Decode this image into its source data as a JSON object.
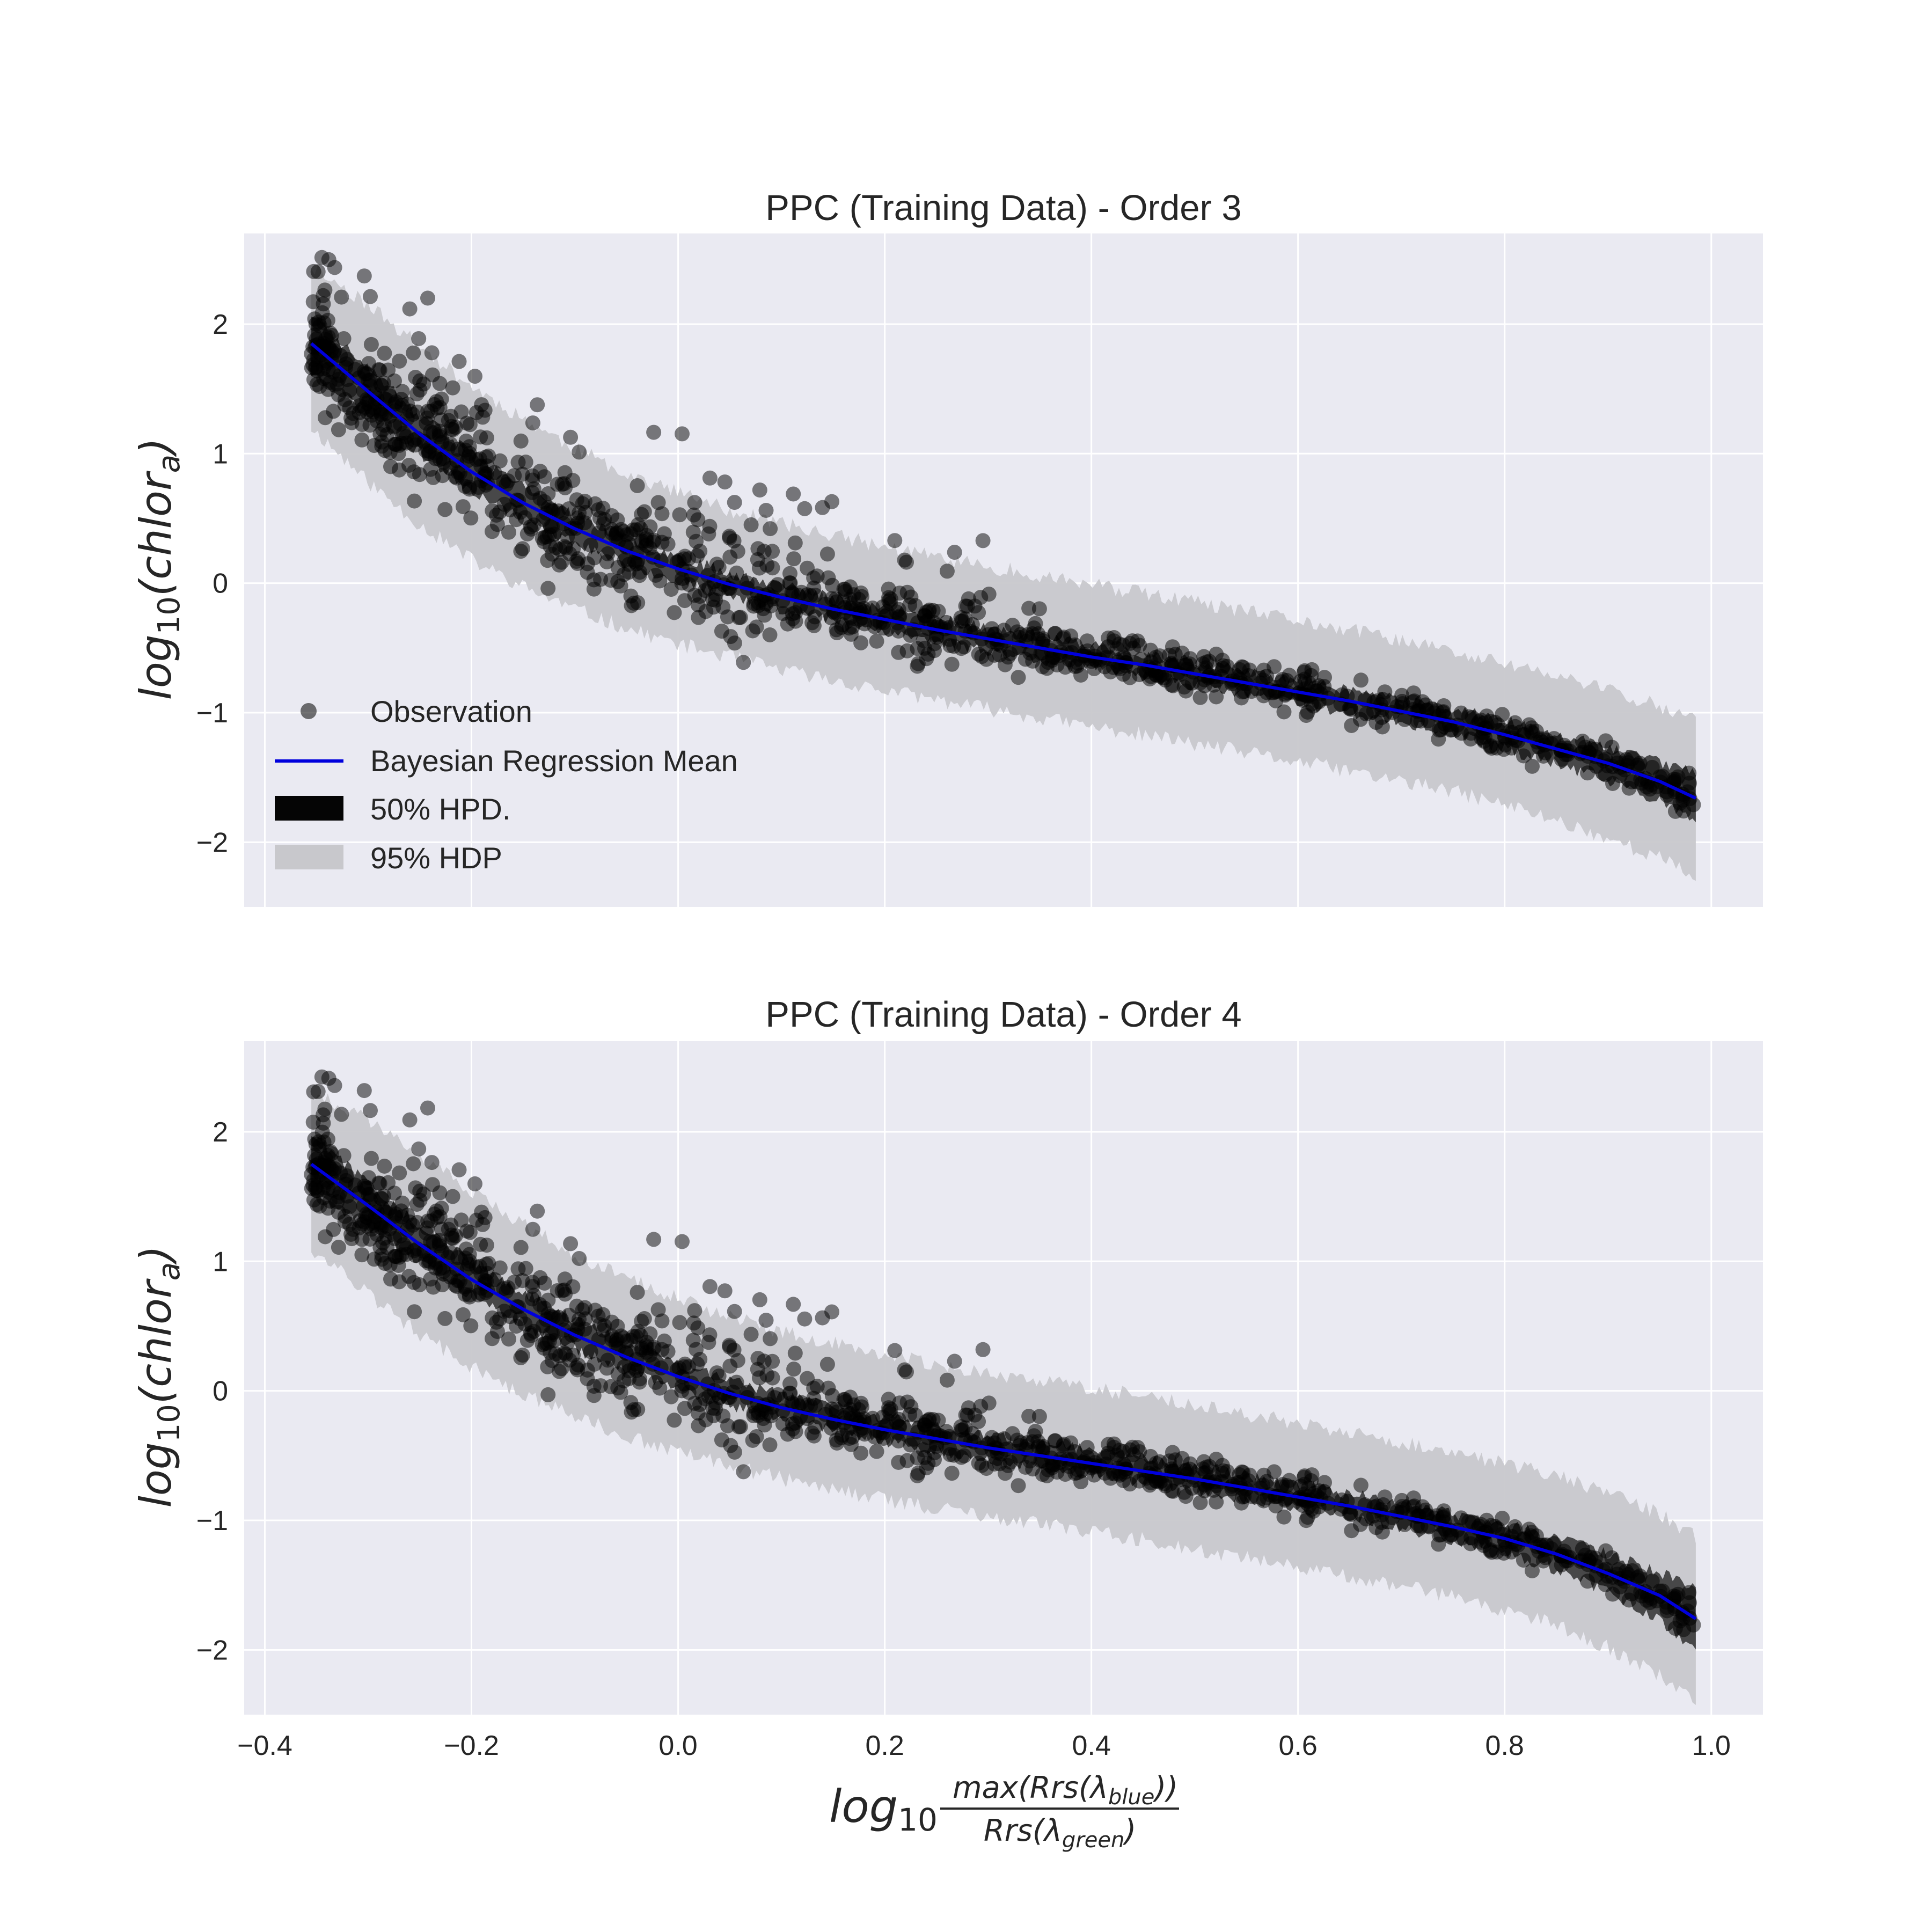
{
  "figure": {
    "xlabel": {
      "prefix": "log",
      "sub": "10",
      "num": "max(Rrs(λ",
      "num_sub": "blue",
      "num_end": "))",
      "den": "Rrs(λ",
      "den_sub": "green",
      "den_end": ")"
    },
    "ylabel": {
      "prefix": "log",
      "sub": "10",
      "main": "(chlor",
      "main_sub": "a",
      "end": ")"
    }
  },
  "legend": {
    "observation": "Observation",
    "mean": "Bayesian Regression Mean",
    "hpd50": "50% HPD.",
    "hdp95": "95% HDP"
  },
  "colors": {
    "panel_bg": "#EAEAF2",
    "mean_line": "#0000DD",
    "obs": "#000000",
    "hpd50": "#3A3A3A",
    "hdp95": "#C8C8CC",
    "grid": "#FFFFFF"
  },
  "chart_data": [
    {
      "type": "scatter",
      "title": "PPC (Training Data) - Order 3",
      "xlim": [
        -0.42,
        1.05
      ],
      "ylim": [
        -2.5,
        2.7
      ],
      "xticks": [
        -0.4,
        -0.2,
        0.0,
        0.2,
        0.4,
        0.6,
        0.8,
        1.0
      ],
      "xtick_labels": [
        "−0.4",
        "−0.2",
        "0.0",
        "0.2",
        "0.4",
        "0.6",
        "0.8",
        "1.0"
      ],
      "yticks": [
        -2,
        -1,
        0,
        1,
        2
      ],
      "ytick_labels": [
        "−2",
        "−1",
        "0",
        "1",
        "2"
      ],
      "xtick_labels_visible": false,
      "grid": true,
      "legend_position": "lower-left",
      "series": [
        {
          "name": "Bayesian Regression Mean",
          "kind": "line",
          "x": [
            -0.355,
            -0.3,
            -0.25,
            -0.2,
            -0.15,
            -0.1,
            -0.05,
            0.0,
            0.05,
            0.1,
            0.15,
            0.2,
            0.25,
            0.3,
            0.35,
            0.4,
            0.45,
            0.5,
            0.55,
            0.6,
            0.65,
            0.7,
            0.75,
            0.8,
            0.85,
            0.9,
            0.95,
            0.985
          ],
          "y": [
            1.85,
            1.48,
            1.15,
            0.86,
            0.62,
            0.42,
            0.25,
            0.11,
            -0.01,
            -0.11,
            -0.2,
            -0.28,
            -0.36,
            -0.43,
            -0.5,
            -0.57,
            -0.63,
            -0.7,
            -0.77,
            -0.84,
            -0.91,
            -0.99,
            -1.07,
            -1.17,
            -1.28,
            -1.39,
            -1.53,
            -1.66
          ]
        },
        {
          "name": "50% HPD.",
          "kind": "band",
          "x": [
            -0.355,
            -0.3,
            -0.25,
            -0.2,
            -0.15,
            -0.1,
            -0.05,
            0.0,
            0.05,
            0.1,
            0.15,
            0.2,
            0.25,
            0.3,
            0.35,
            0.4,
            0.45,
            0.5,
            0.55,
            0.6,
            0.65,
            0.7,
            0.75,
            0.8,
            0.85,
            0.9,
            0.95,
            0.985
          ],
          "lower": [
            1.62,
            1.31,
            1.0,
            0.72,
            0.5,
            0.31,
            0.15,
            0.01,
            -0.1,
            -0.2,
            -0.29,
            -0.37,
            -0.45,
            -0.52,
            -0.59,
            -0.66,
            -0.72,
            -0.79,
            -0.86,
            -0.93,
            -1.0,
            -1.08,
            -1.17,
            -1.28,
            -1.4,
            -1.52,
            -1.68,
            -1.86
          ],
          "upper": [
            2.07,
            1.66,
            1.3,
            1.0,
            0.74,
            0.53,
            0.35,
            0.21,
            0.08,
            -0.02,
            -0.11,
            -0.19,
            -0.27,
            -0.34,
            -0.41,
            -0.48,
            -0.54,
            -0.61,
            -0.68,
            -0.75,
            -0.82,
            -0.9,
            -0.97,
            -1.06,
            -1.16,
            -1.26,
            -1.38,
            -1.46
          ]
        },
        {
          "name": "95% HDP",
          "kind": "band",
          "x": [
            -0.355,
            -0.3,
            -0.25,
            -0.2,
            -0.15,
            -0.1,
            -0.05,
            0.0,
            0.05,
            0.1,
            0.15,
            0.2,
            0.25,
            0.3,
            0.35,
            0.4,
            0.45,
            0.5,
            0.55,
            0.6,
            0.65,
            0.7,
            0.75,
            0.8,
            0.85,
            0.9,
            0.95,
            0.985
          ],
          "lower": [
            1.2,
            0.78,
            0.45,
            0.18,
            -0.03,
            -0.2,
            -0.35,
            -0.47,
            -0.57,
            -0.67,
            -0.75,
            -0.83,
            -0.9,
            -0.97,
            -1.04,
            -1.11,
            -1.17,
            -1.24,
            -1.31,
            -1.38,
            -1.45,
            -1.53,
            -1.61,
            -1.71,
            -1.83,
            -1.97,
            -2.12,
            -2.28
          ],
          "upper": [
            2.45,
            2.15,
            1.83,
            1.52,
            1.27,
            1.04,
            0.85,
            0.7,
            0.56,
            0.46,
            0.37,
            0.28,
            0.2,
            0.13,
            0.06,
            -0.01,
            -0.08,
            -0.15,
            -0.22,
            -0.29,
            -0.36,
            -0.44,
            -0.53,
            -0.62,
            -0.72,
            -0.82,
            -0.95,
            -1.07
          ]
        },
        {
          "name": "Observation",
          "kind": "scatter",
          "n_points": 1100
        }
      ]
    },
    {
      "type": "scatter",
      "title": "PPC (Training Data) - Order 4",
      "xlim": [
        -0.42,
        1.05
      ],
      "ylim": [
        -2.5,
        2.7
      ],
      "xticks": [
        -0.4,
        -0.2,
        0.0,
        0.2,
        0.4,
        0.6,
        0.8,
        1.0
      ],
      "xtick_labels": [
        "−0.4",
        "−0.2",
        "0.0",
        "0.2",
        "0.4",
        "0.6",
        "0.8",
        "1.0"
      ],
      "yticks": [
        -2,
        -1,
        0,
        1,
        2
      ],
      "ytick_labels": [
        "−2",
        "−1",
        "0",
        "1",
        "2"
      ],
      "xtick_labels_visible": true,
      "grid": true,
      "series": [
        {
          "name": "Bayesian Regression Mean",
          "kind": "line",
          "x": [
            -0.355,
            -0.3,
            -0.25,
            -0.2,
            -0.15,
            -0.1,
            -0.05,
            0.0,
            0.05,
            0.1,
            0.15,
            0.2,
            0.25,
            0.3,
            0.35,
            0.4,
            0.45,
            0.5,
            0.55,
            0.6,
            0.65,
            0.7,
            0.75,
            0.8,
            0.85,
            0.9,
            0.95,
            0.985
          ],
          "y": [
            1.75,
            1.43,
            1.13,
            0.86,
            0.63,
            0.43,
            0.26,
            0.11,
            -0.02,
            -0.13,
            -0.22,
            -0.3,
            -0.37,
            -0.44,
            -0.5,
            -0.56,
            -0.62,
            -0.68,
            -0.75,
            -0.82,
            -0.89,
            -0.97,
            -1.05,
            -1.14,
            -1.26,
            -1.41,
            -1.58,
            -1.76
          ]
        },
        {
          "name": "50% HPD.",
          "kind": "band",
          "x": [
            -0.355,
            -0.3,
            -0.25,
            -0.2,
            -0.15,
            -0.1,
            -0.05,
            0.0,
            0.05,
            0.1,
            0.15,
            0.2,
            0.25,
            0.3,
            0.35,
            0.4,
            0.45,
            0.5,
            0.55,
            0.6,
            0.65,
            0.7,
            0.75,
            0.8,
            0.85,
            0.9,
            0.95,
            0.985
          ],
          "lower": [
            1.53,
            1.27,
            0.99,
            0.73,
            0.51,
            0.32,
            0.16,
            0.01,
            -0.11,
            -0.22,
            -0.31,
            -0.39,
            -0.46,
            -0.53,
            -0.59,
            -0.65,
            -0.71,
            -0.77,
            -0.84,
            -0.91,
            -0.98,
            -1.06,
            -1.15,
            -1.25,
            -1.38,
            -1.55,
            -1.77,
            -2.02
          ],
          "upper": [
            1.97,
            1.6,
            1.28,
            1.0,
            0.76,
            0.55,
            0.37,
            0.21,
            0.08,
            -0.03,
            -0.12,
            -0.2,
            -0.27,
            -0.34,
            -0.4,
            -0.46,
            -0.52,
            -0.58,
            -0.65,
            -0.72,
            -0.79,
            -0.87,
            -0.95,
            -1.03,
            -1.13,
            -1.26,
            -1.4,
            -1.51
          ]
        },
        {
          "name": "95% HDP",
          "kind": "band",
          "x": [
            -0.355,
            -0.3,
            -0.25,
            -0.2,
            -0.15,
            -0.1,
            -0.05,
            0.0,
            0.05,
            0.1,
            0.15,
            0.2,
            0.25,
            0.3,
            0.35,
            0.4,
            0.45,
            0.5,
            0.55,
            0.6,
            0.65,
            0.7,
            0.75,
            0.8,
            0.85,
            0.9,
            0.95,
            0.985
          ],
          "lower": [
            1.1,
            0.75,
            0.44,
            0.18,
            -0.03,
            -0.2,
            -0.35,
            -0.47,
            -0.58,
            -0.68,
            -0.76,
            -0.84,
            -0.91,
            -0.97,
            -1.03,
            -1.09,
            -1.15,
            -1.22,
            -1.29,
            -1.36,
            -1.43,
            -1.51,
            -1.59,
            -1.69,
            -1.81,
            -1.98,
            -2.2,
            -2.42
          ],
          "upper": [
            2.3,
            2.1,
            1.82,
            1.53,
            1.28,
            1.05,
            0.87,
            0.71,
            0.57,
            0.46,
            0.37,
            0.29,
            0.21,
            0.14,
            0.08,
            0.02,
            -0.04,
            -0.11,
            -0.18,
            -0.25,
            -0.32,
            -0.4,
            -0.48,
            -0.56,
            -0.66,
            -0.78,
            -0.95,
            -1.12
          ]
        },
        {
          "name": "Observation",
          "kind": "scatter",
          "n_points": 1100
        }
      ]
    }
  ]
}
